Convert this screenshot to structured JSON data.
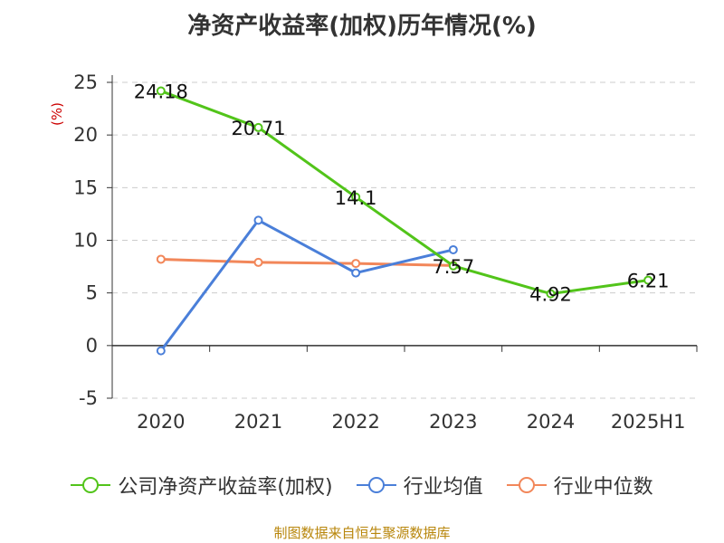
{
  "title": "净资产收益率(加权)历年情况(%)",
  "source": "制图数据来自恒生聚源数据库",
  "colors": {
    "company": "#52c41a",
    "industry_avg": "#4a7fd9",
    "industry_median": "#f2875a",
    "axis": "#333333",
    "grid": "#cccccc",
    "ylabel": "#cc0000"
  },
  "chart_data": {
    "type": "line",
    "title": "净资产收益率(加权)历年情况(%)",
    "xlabel": "",
    "ylabel": "(%)",
    "ylim": [
      -5,
      25
    ],
    "yticks": [
      -5,
      0,
      5,
      10,
      15,
      20,
      25
    ],
    "grid": true,
    "legend_position": "bottom",
    "categories": [
      "2020",
      "2021",
      "2022",
      "2023",
      "2024",
      "2025H1"
    ],
    "series": [
      {
        "name": "公司净资产收益率(加权)",
        "color": "#52c41a",
        "values": [
          24.18,
          20.71,
          14.1,
          7.57,
          4.92,
          6.21
        ],
        "data_labels": [
          "24.18",
          "20.71",
          "14.1",
          "7.57",
          "4.92",
          "6.21"
        ]
      },
      {
        "name": "行业均值",
        "color": "#4a7fd9",
        "values": [
          -0.5,
          11.9,
          6.9,
          9.1,
          null,
          null
        ]
      },
      {
        "name": "行业中位数",
        "color": "#f2875a",
        "values": [
          8.2,
          7.9,
          7.8,
          7.6,
          null,
          null
        ]
      }
    ]
  }
}
